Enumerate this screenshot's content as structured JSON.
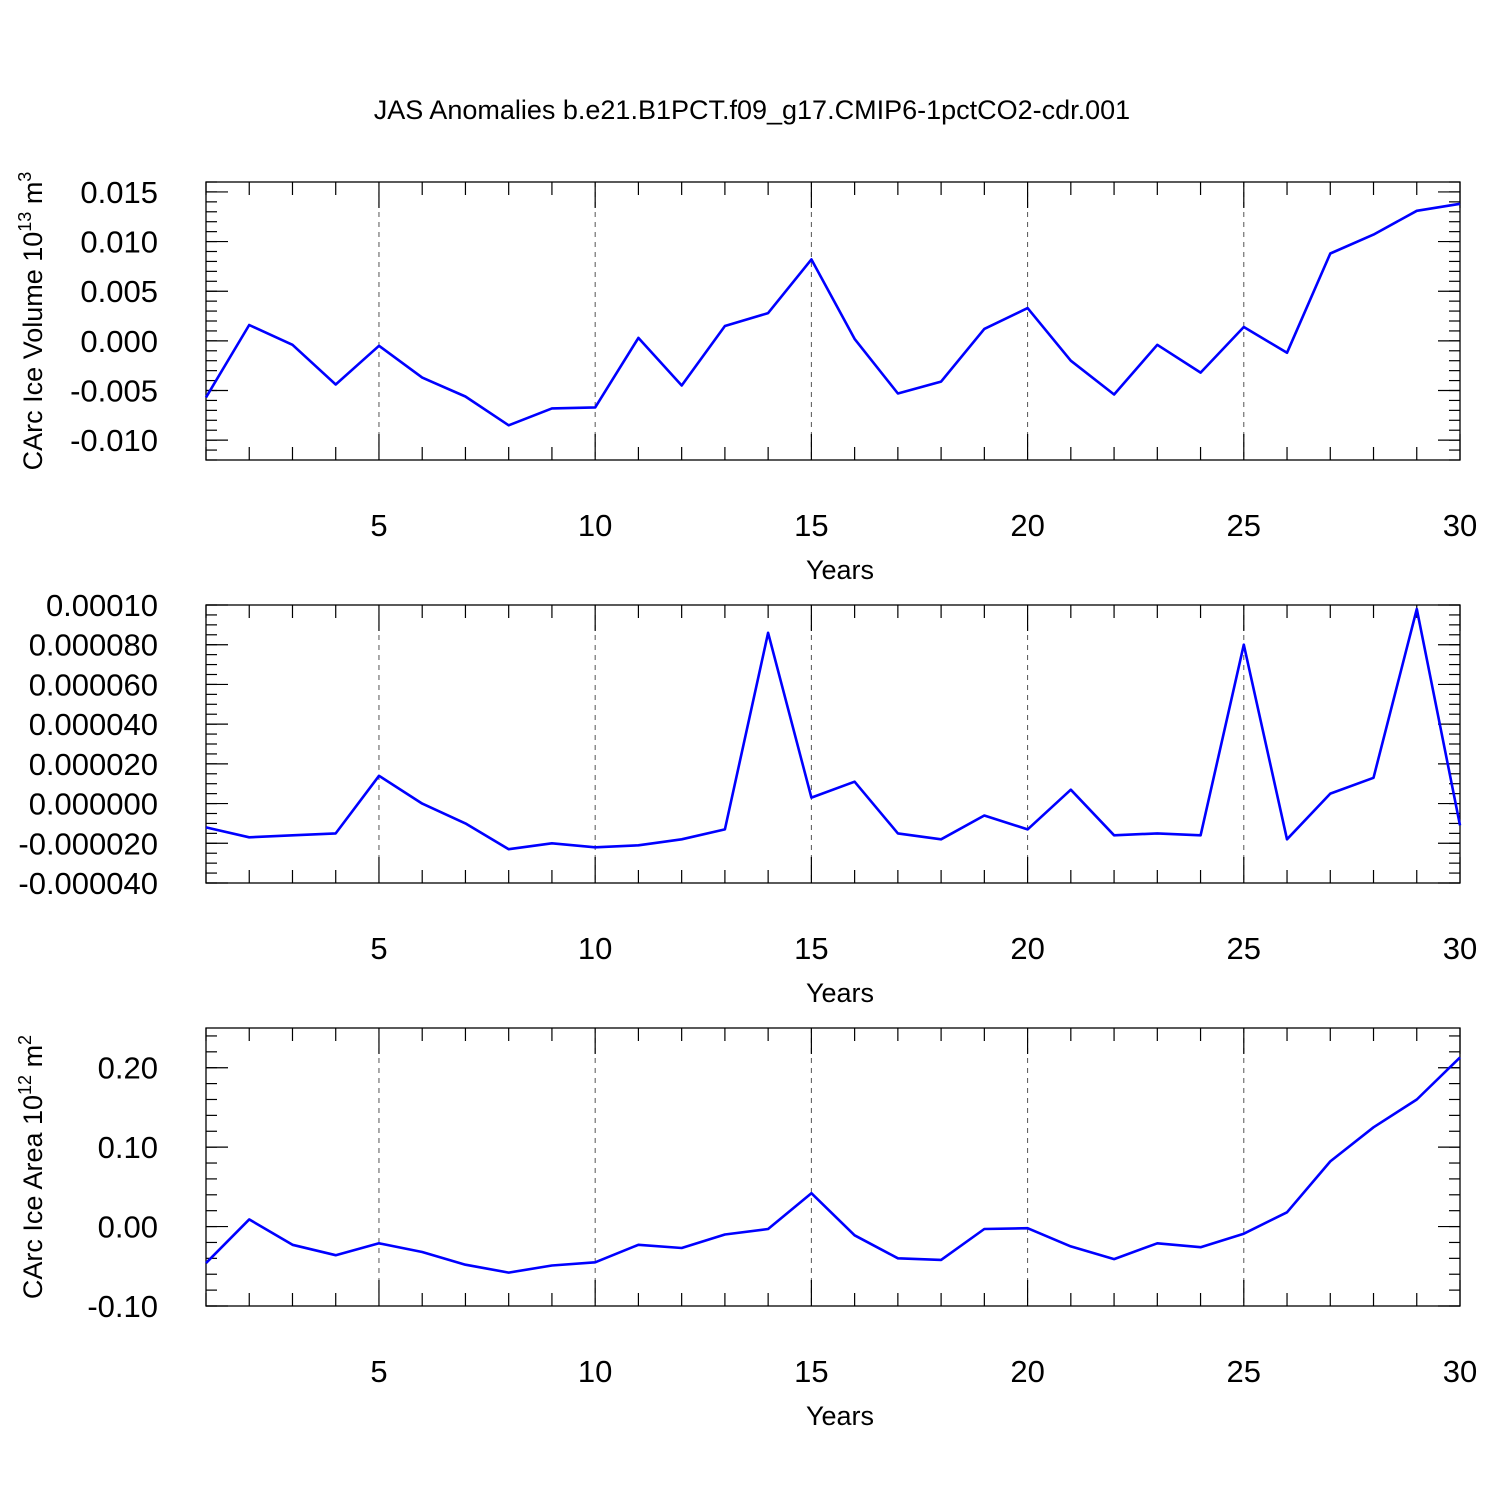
{
  "title": "JAS Anomalies b.e21.B1PCT.f09_g17.CMIP6-1pctCO2-cdr.001",
  "chart_data": [
    {
      "type": "line",
      "xlabel": "Years",
      "ylabel": {
        "base": "CArc Ice Volume 10",
        "exp": "13",
        "unit": " m",
        "unit_exp": "3"
      },
      "xlim": [
        1,
        30
      ],
      "ylim": [
        -0.012,
        0.016
      ],
      "x_ticks": [
        5,
        10,
        15,
        20,
        25,
        30
      ],
      "y_ticks": [
        {
          "v": 0.015,
          "label": "0.015"
        },
        {
          "v": 0.01,
          "label": "0.010"
        },
        {
          "v": 0.005,
          "label": "0.005"
        },
        {
          "v": 0.0,
          "label": "0.000"
        },
        {
          "v": -0.005,
          "label": "-0.005"
        },
        {
          "v": -0.01,
          "label": "-0.010"
        }
      ],
      "y_minor_step": 0.001,
      "grid": "x-dashed",
      "color": "#0000ff",
      "x": [
        1,
        2,
        3,
        4,
        5,
        6,
        7,
        8,
        9,
        10,
        11,
        12,
        13,
        14,
        15,
        16,
        17,
        18,
        19,
        20,
        21,
        22,
        23,
        24,
        25,
        26,
        27,
        28,
        29,
        30
      ],
      "values": [
        -0.0057,
        0.0016,
        -0.0004,
        -0.0044,
        -0.0005,
        -0.0037,
        -0.0056,
        -0.0085,
        -0.0068,
        -0.0067,
        0.0003,
        -0.0045,
        0.0015,
        0.0028,
        0.0082,
        0.0002,
        -0.0053,
        -0.0041,
        0.0012,
        0.0033,
        -0.002,
        -0.0054,
        -0.0004,
        -0.0032,
        0.0014,
        -0.0012,
        0.0088,
        0.0107,
        0.0131,
        0.0138
      ]
    },
    {
      "type": "line",
      "xlabel": "Years",
      "ylabel": null,
      "xlim": [
        1,
        30
      ],
      "ylim": [
        -4e-05,
        0.0001
      ],
      "x_ticks": [
        5,
        10,
        15,
        20,
        25,
        30
      ],
      "y_ticks": [
        {
          "v": 0.0001,
          "label": "0.00010"
        },
        {
          "v": 8e-05,
          "label": "0.000080"
        },
        {
          "v": 6e-05,
          "label": "0.000060"
        },
        {
          "v": 4e-05,
          "label": "0.000040"
        },
        {
          "v": 2e-05,
          "label": "0.000020"
        },
        {
          "v": 0.0,
          "label": "0.000000"
        },
        {
          "v": -2e-05,
          "label": "-0.000020"
        },
        {
          "v": -4e-05,
          "label": "-0.000040"
        }
      ],
      "y_minor_step": 5e-06,
      "grid": "x-dashed",
      "color": "#0000ff",
      "x": [
        1,
        2,
        3,
        4,
        5,
        6,
        7,
        8,
        9,
        10,
        11,
        12,
        13,
        14,
        15,
        16,
        17,
        18,
        19,
        20,
        21,
        22,
        23,
        24,
        25,
        26,
        27,
        28,
        29,
        30
      ],
      "values": [
        -1.2e-05,
        -1.7e-05,
        -1.6e-05,
        -1.5e-05,
        1.4e-05,
        0.0,
        -1e-05,
        -2.3e-05,
        -2e-05,
        -2.2e-05,
        -2.1e-05,
        -1.8e-05,
        -1.3e-05,
        8.6e-05,
        3e-06,
        1.1e-05,
        -1.5e-05,
        -1.8e-05,
        -6e-06,
        -1.3e-05,
        7e-06,
        -1.6e-05,
        -1.5e-05,
        -1.6e-05,
        8e-05,
        -1.8e-05,
        5e-06,
        1.3e-05,
        9.8e-05,
        -1.1e-05
      ]
    },
    {
      "type": "line",
      "xlabel": "Years",
      "ylabel": {
        "base": "CArc Ice Area 10",
        "exp": "12",
        "unit": " m",
        "unit_exp": "2"
      },
      "xlim": [
        1,
        30
      ],
      "ylim": [
        -0.1,
        0.25
      ],
      "x_ticks": [
        5,
        10,
        15,
        20,
        25,
        30
      ],
      "y_ticks": [
        {
          "v": 0.2,
          "label": "0.20"
        },
        {
          "v": 0.1,
          "label": "0.10"
        },
        {
          "v": 0.0,
          "label": "0.00"
        },
        {
          "v": -0.1,
          "label": "-0.10"
        }
      ],
      "y_minor_step": 0.02,
      "grid": "x-dashed",
      "color": "#0000ff",
      "x": [
        1,
        2,
        3,
        4,
        5,
        6,
        7,
        8,
        9,
        10,
        11,
        12,
        13,
        14,
        15,
        16,
        17,
        18,
        19,
        20,
        21,
        22,
        23,
        24,
        25,
        26,
        27,
        28,
        29,
        30
      ],
      "values": [
        -0.046,
        0.009,
        -0.023,
        -0.036,
        -0.021,
        -0.032,
        -0.048,
        -0.058,
        -0.049,
        -0.045,
        -0.023,
        -0.027,
        -0.01,
        -0.003,
        0.042,
        -0.011,
        -0.04,
        -0.042,
        -0.003,
        -0.002,
        -0.025,
        -0.041,
        -0.021,
        -0.026,
        -0.009,
        0.018,
        0.082,
        0.125,
        0.16,
        0.213
      ]
    }
  ]
}
